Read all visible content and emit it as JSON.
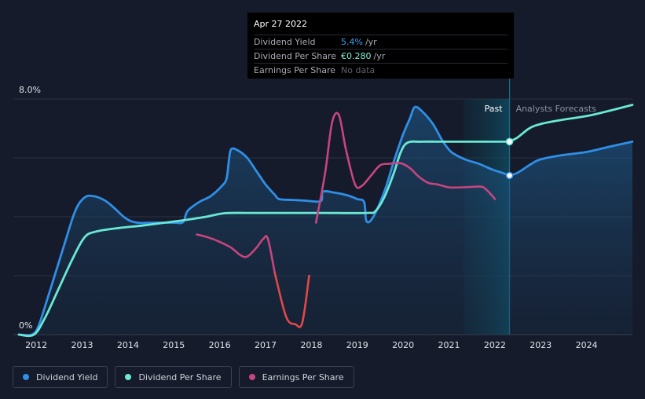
{
  "tooltip": {
    "date": "Apr 27 2022",
    "rows": [
      {
        "label": "Dividend Yield",
        "value": "5.4%",
        "unit": "/yr",
        "color": "#3aa0ee"
      },
      {
        "label": "Dividend Per Share",
        "value": "€0.280",
        "unit": "/yr",
        "color": "#7ef0d9"
      },
      {
        "label": "Earnings Per Share",
        "value": "No data",
        "unit": "",
        "color": "#5f636b"
      }
    ]
  },
  "legend": [
    {
      "label": "Dividend Yield",
      "color": "#2f8fe6"
    },
    {
      "label": "Dividend Per Share",
      "color": "#6ae8d3"
    },
    {
      "label": "Earnings Per Share",
      "color": "#c8457f"
    }
  ],
  "chart_data": {
    "type": "line",
    "x_range": [
      2011.5,
      2025.0
    ],
    "ylim": [
      0,
      8.0
    ],
    "y_tick_labels": [
      "8.0%",
      "0%"
    ],
    "x_ticks": [
      2012,
      2013,
      2014,
      2015,
      2016,
      2017,
      2018,
      2019,
      2020,
      2021,
      2022,
      2023,
      2024
    ],
    "past_label": "Past",
    "forecast_label": "Analysts Forecasts",
    "forecast_start": 2022.32,
    "past_band_start": 2021.32,
    "grid": true,
    "series": [
      {
        "name": "Dividend Yield",
        "color": "#2f8fe6",
        "area": true,
        "points": [
          [
            2011.62,
            0
          ],
          [
            2011.9,
            0
          ],
          [
            2012.05,
            0.3
          ],
          [
            2012.3,
            1.5
          ],
          [
            2012.6,
            3.0
          ],
          [
            2012.85,
            4.2
          ],
          [
            2013.05,
            4.65
          ],
          [
            2013.25,
            4.7
          ],
          [
            2013.5,
            4.55
          ],
          [
            2013.7,
            4.3
          ],
          [
            2013.95,
            3.95
          ],
          [
            2014.2,
            3.8
          ],
          [
            2014.6,
            3.8
          ],
          [
            2015.0,
            3.8
          ],
          [
            2015.2,
            3.82
          ],
          [
            2015.3,
            4.2
          ],
          [
            2015.55,
            4.5
          ],
          [
            2015.8,
            4.7
          ],
          [
            2016.05,
            5.05
          ],
          [
            2016.15,
            5.3
          ],
          [
            2016.2,
            5.9
          ],
          [
            2016.25,
            6.3
          ],
          [
            2016.4,
            6.25
          ],
          [
            2016.6,
            6.0
          ],
          [
            2016.8,
            5.55
          ],
          [
            2017.0,
            5.1
          ],
          [
            2017.2,
            4.75
          ],
          [
            2017.3,
            4.6
          ],
          [
            2017.6,
            4.57
          ],
          [
            2017.85,
            4.55
          ],
          [
            2018.2,
            4.53
          ],
          [
            2018.25,
            4.85
          ],
          [
            2018.5,
            4.82
          ],
          [
            2018.8,
            4.72
          ],
          [
            2019.0,
            4.6
          ],
          [
            2019.15,
            4.5
          ],
          [
            2019.2,
            3.85
          ],
          [
            2019.35,
            4.0
          ],
          [
            2019.6,
            4.9
          ],
          [
            2019.8,
            5.9
          ],
          [
            2020.0,
            6.8
          ],
          [
            2020.15,
            7.35
          ],
          [
            2020.25,
            7.72
          ],
          [
            2020.4,
            7.6
          ],
          [
            2020.65,
            7.15
          ],
          [
            2020.85,
            6.6
          ],
          [
            2021.05,
            6.2
          ],
          [
            2021.35,
            5.95
          ],
          [
            2021.65,
            5.8
          ],
          [
            2021.95,
            5.6
          ],
          [
            2022.15,
            5.5
          ],
          [
            2022.32,
            5.4
          ]
        ]
      },
      {
        "name": "Dividend Yield forecast",
        "color": "#2f8fe6",
        "area": true,
        "points": [
          [
            2022.32,
            5.4
          ],
          [
            2022.5,
            5.5
          ],
          [
            2022.8,
            5.8
          ],
          [
            2023.0,
            5.95
          ],
          [
            2023.5,
            6.1
          ],
          [
            2024.0,
            6.2
          ],
          [
            2024.5,
            6.38
          ],
          [
            2025.0,
            6.55
          ]
        ]
      },
      {
        "name": "Dividend Per Share",
        "color": "#6ae8d3",
        "area": false,
        "points": [
          [
            2011.62,
            0
          ],
          [
            2011.95,
            0
          ],
          [
            2012.2,
            0.6
          ],
          [
            2012.5,
            1.6
          ],
          [
            2012.8,
            2.6
          ],
          [
            2013.05,
            3.3
          ],
          [
            2013.3,
            3.5
          ],
          [
            2013.8,
            3.62
          ],
          [
            2014.3,
            3.7
          ],
          [
            2014.8,
            3.8
          ],
          [
            2015.2,
            3.88
          ],
          [
            2015.7,
            4.0
          ],
          [
            2016.1,
            4.12
          ],
          [
            2016.6,
            4.13
          ],
          [
            2017.2,
            4.13
          ],
          [
            2018.2,
            4.13
          ],
          [
            2019.2,
            4.13
          ],
          [
            2019.4,
            4.2
          ],
          [
            2019.6,
            4.7
          ],
          [
            2019.8,
            5.5
          ],
          [
            2019.95,
            6.2
          ],
          [
            2020.1,
            6.52
          ],
          [
            2020.4,
            6.55
          ],
          [
            2021.0,
            6.55
          ],
          [
            2021.5,
            6.55
          ],
          [
            2022.0,
            6.55
          ],
          [
            2022.32,
            6.55
          ]
        ]
      },
      {
        "name": "Dividend Per Share forecast",
        "color": "#6ae8d3",
        "area": false,
        "points": [
          [
            2022.32,
            6.55
          ],
          [
            2022.5,
            6.7
          ],
          [
            2022.75,
            7.0
          ],
          [
            2023.0,
            7.15
          ],
          [
            2023.5,
            7.3
          ],
          [
            2024.0,
            7.42
          ],
          [
            2024.5,
            7.6
          ],
          [
            2025.0,
            7.8
          ]
        ]
      },
      {
        "name": "Earnings Per Share",
        "color": "#c8457f",
        "area": false,
        "points": [
          [
            2015.5,
            3.4
          ],
          [
            2015.75,
            3.3
          ],
          [
            2016.0,
            3.15
          ],
          [
            2016.25,
            2.95
          ],
          [
            2016.45,
            2.7
          ],
          [
            2016.6,
            2.65
          ],
          [
            2016.8,
            2.95
          ],
          [
            2016.95,
            3.25
          ],
          [
            2017.05,
            3.25
          ],
          [
            2017.2,
            2.1
          ],
          [
            2017.45,
            0.6
          ],
          [
            2017.65,
            0.35
          ],
          [
            2017.8,
            0.4
          ],
          [
            2017.95,
            2.0
          ],
          [
            2018.1,
            3.8
          ],
          [
            2018.3,
            5.5
          ],
          [
            2018.45,
            7.2
          ],
          [
            2018.6,
            7.45
          ],
          [
            2018.75,
            6.3
          ],
          [
            2018.95,
            5.1
          ],
          [
            2019.1,
            5.05
          ],
          [
            2019.3,
            5.4
          ],
          [
            2019.5,
            5.75
          ],
          [
            2019.7,
            5.8
          ],
          [
            2019.95,
            5.82
          ],
          [
            2020.15,
            5.65
          ],
          [
            2020.35,
            5.35
          ],
          [
            2020.55,
            5.15
          ],
          [
            2020.75,
            5.1
          ],
          [
            2021.0,
            5.0
          ],
          [
            2021.3,
            5.0
          ],
          [
            2021.55,
            5.02
          ],
          [
            2021.75,
            5.0
          ],
          [
            2021.95,
            4.7
          ],
          [
            2022.0,
            4.6
          ]
        ]
      }
    ],
    "markers": [
      {
        "x": 2022.32,
        "y": 6.55,
        "color": "#6ae8d3"
      },
      {
        "x": 2022.32,
        "y": 5.4,
        "color": "#2f8fe6"
      }
    ]
  }
}
